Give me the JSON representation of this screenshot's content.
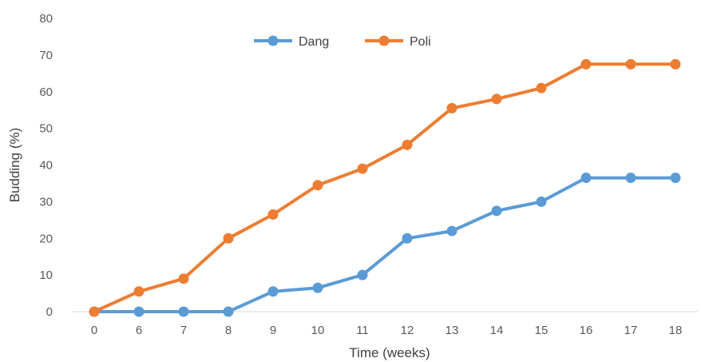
{
  "chart_data": {
    "type": "line",
    "title": "",
    "xlabel": "Time (weeks)",
    "ylabel": "Budding (%)",
    "categories": [
      "0",
      "6",
      "7",
      "8",
      "9",
      "10",
      "11",
      "12",
      "13",
      "14",
      "15",
      "16",
      "17",
      "18"
    ],
    "ylim": [
      0,
      80
    ],
    "yticks": [
      "0",
      "10",
      "20",
      "30",
      "40",
      "50",
      "60",
      "70",
      "80"
    ],
    "grid": false,
    "legend_position": "top-center",
    "series": [
      {
        "name": "Dang",
        "color": "#5B9BD5",
        "values": [
          0,
          0,
          0,
          0,
          5.5,
          6.5,
          10,
          20,
          22,
          27.5,
          30,
          36.5,
          36.5,
          36.5
        ]
      },
      {
        "name": "Poli",
        "color": "#ED7D31",
        "values": [
          0,
          5.5,
          9,
          20,
          26.5,
          34.5,
          39,
          45.5,
          55.5,
          58,
          61,
          67.5,
          67.5,
          67.5
        ]
      }
    ]
  }
}
